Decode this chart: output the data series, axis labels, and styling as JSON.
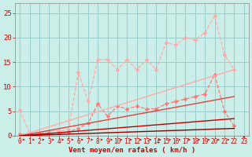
{
  "background_color": "#cceee8",
  "grid_color": "#99cccc",
  "x_labels": [
    "0",
    "1",
    "2",
    "3",
    "4",
    "5",
    "6",
    "7",
    "8",
    "9",
    "10",
    "11",
    "12",
    "13",
    "14",
    "15",
    "16",
    "17",
    "18",
    "19",
    "20",
    "21",
    "22",
    "23"
  ],
  "xlabel": "Vent moyen/en rafales ( km/h )",
  "ylim": [
    0,
    27
  ],
  "xlim": [
    -0.5,
    23.5
  ],
  "yticks": [
    0,
    5,
    10,
    15,
    20,
    25
  ],
  "lines": [
    {
      "x": [
        0,
        1,
        2,
        3,
        4,
        5,
        6,
        7,
        8,
        9,
        10,
        11,
        12,
        13,
        14,
        15,
        16,
        17,
        18,
        19,
        20,
        21,
        22
      ],
      "y": [
        5.3,
        0.5,
        0.5,
        1.0,
        1.0,
        1.3,
        13.0,
        7.0,
        15.5,
        15.5,
        13.5,
        15.5,
        13.5,
        15.5,
        13.5,
        19.0,
        18.5,
        20.0,
        19.5,
        21.0,
        24.5,
        16.5,
        13.5
      ],
      "color": "#ffaaaa",
      "lw": 0.9,
      "marker": "D",
      "ms": 2.5,
      "linestyle": "--"
    },
    {
      "x": [
        0,
        1,
        2,
        3,
        4,
        5,
        6,
        7,
        8,
        9,
        10,
        11,
        12,
        13,
        14,
        15,
        16,
        17,
        18,
        19,
        20,
        21,
        22
      ],
      "y": [
        0.3,
        0.3,
        0.3,
        0.5,
        0.5,
        0.8,
        1.5,
        2.5,
        6.5,
        4.0,
        6.0,
        5.5,
        6.0,
        5.5,
        5.5,
        6.5,
        7.0,
        7.5,
        8.0,
        8.5,
        12.5,
        5.0,
        2.0
      ],
      "color": "#ff7777",
      "lw": 0.9,
      "marker": "D",
      "ms": 2.5,
      "linestyle": "--"
    },
    {
      "x": [
        0,
        22
      ],
      "y": [
        0.0,
        13.5
      ],
      "color": "#ffaaaa",
      "lw": 1.0,
      "marker": null,
      "ms": 0,
      "linestyle": "-"
    },
    {
      "x": [
        0,
        22
      ],
      "y": [
        0.0,
        8.0
      ],
      "color": "#dd4444",
      "lw": 1.0,
      "marker": null,
      "ms": 0,
      "linestyle": "-"
    },
    {
      "x": [
        0,
        22
      ],
      "y": [
        0.0,
        3.5
      ],
      "color": "#bb0000",
      "lw": 1.0,
      "marker": null,
      "ms": 0,
      "linestyle": "-"
    },
    {
      "x": [
        0,
        22
      ],
      "y": [
        0.0,
        1.5
      ],
      "color": "#880000",
      "lw": 1.0,
      "marker": null,
      "ms": 0,
      "linestyle": "-"
    }
  ],
  "arrow_color": "#cc0000",
  "label_color": "#cc0000",
  "xlabel_fontsize": 6.5,
  "tick_fontsize": 5.5,
  "ytick_fontsize": 6.5
}
